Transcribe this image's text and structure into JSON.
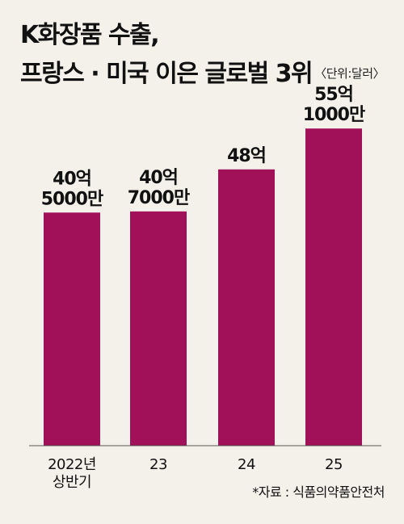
{
  "title_lines": [
    "K화장품 수출,",
    "프랑스 · 미국 이은 글로벌 3위"
  ],
  "unit": "〈단위:달러〉",
  "source": "*자료 : 식품의약품안전처",
  "colors": {
    "bar": "#a0115a",
    "background": "#f3f1ea",
    "axis": "#555555"
  },
  "chart_data": {
    "type": "bar",
    "title": "",
    "xlabel": "",
    "ylabel": "",
    "ylim": [
      0,
      62
    ],
    "grid": false,
    "categories": [
      [
        "2022년",
        "상반기"
      ],
      [
        "23"
      ],
      [
        "24"
      ],
      [
        "25"
      ]
    ],
    "values": [
      40.5,
      40.7,
      48,
      55.1
    ],
    "value_labels": [
      [
        "40억",
        "5000만"
      ],
      [
        "40억",
        "7000만"
      ],
      [
        "48억"
      ],
      [
        "55억",
        "1000만"
      ]
    ]
  }
}
